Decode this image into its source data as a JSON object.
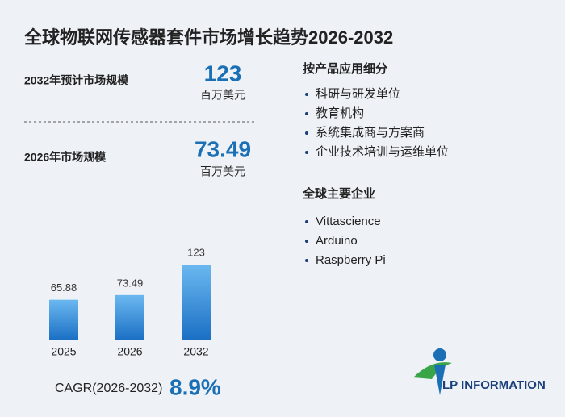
{
  "title": "全球物联网传感器套件市场增长趋势2026-2032",
  "stats": [
    {
      "label": "2032年预计市场规模",
      "value": 123,
      "unit": "百万美元"
    },
    {
      "label": "2026年市场规模",
      "value": 73.49,
      "unit": "百万美元"
    }
  ],
  "segments": {
    "title": "按产品应用细分",
    "items": [
      "科研与研发单位",
      "教育机构",
      "系统集成商与方案商",
      "企业技术培训与运维单位"
    ]
  },
  "companies": {
    "title": "全球主要企业",
    "items": [
      "Vittascience",
      "Arduino",
      "Raspberry Pi"
    ]
  },
  "cagr": {
    "label": "CAGR(2026-2032)",
    "value": "8.9%"
  },
  "logo": "LP INFORMATION",
  "chart_data": {
    "type": "bar",
    "categories": [
      "2025",
      "2026",
      "2032"
    ],
    "values": [
      65.88,
      73.49,
      123
    ],
    "color": "#2a86d8"
  }
}
